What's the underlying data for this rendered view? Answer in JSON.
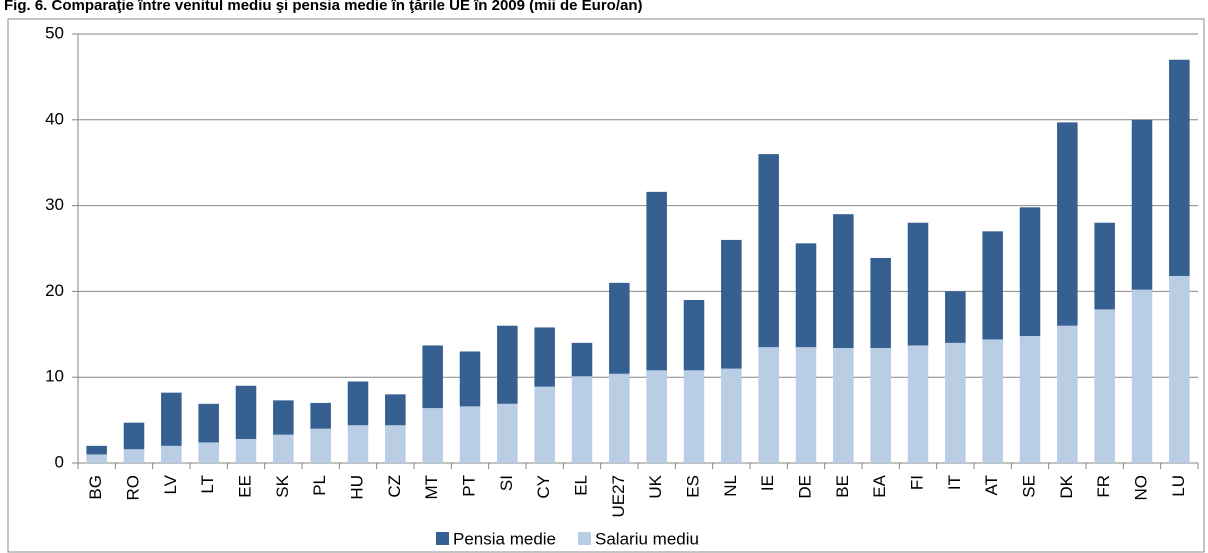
{
  "chart_data": {
    "type": "stacked_bar",
    "title": "Fig. 6. Comparaţie între venitul mediu şi pensia medie în ţările UE în 2009 (mii de Euro/an)",
    "categories": [
      "BG",
      "RO",
      "LV",
      "LT",
      "EE",
      "SK",
      "PL",
      "HU",
      "CZ",
      "MT",
      "PT",
      "SI",
      "CY",
      "EL",
      "UE27",
      "UK",
      "ES",
      "NL",
      "IE",
      "DE",
      "BE",
      "EA",
      "FI",
      "IT",
      "AT",
      "SE",
      "DK",
      "FR",
      "NO",
      "LU"
    ],
    "series": [
      {
        "name": "Pensia medie",
        "color": "#376092",
        "values": [
          1,
          3.1,
          6.2,
          4.5,
          6.2,
          4,
          3,
          5.1,
          3.6,
          7.3,
          6.4,
          9.1,
          6.9,
          3.9,
          10.6,
          20.8,
          8.2,
          15,
          22.5,
          12.1,
          15.6,
          10.5,
          14.3,
          6,
          12.6,
          15,
          23.7,
          10.1,
          19.8,
          25.2
        ]
      },
      {
        "name": "Salariu mediu",
        "color": "#b9cde5",
        "values": [
          1,
          1.6,
          2,
          2.4,
          2.8,
          3.3,
          4,
          4.4,
          4.4,
          6.4,
          6.6,
          6.9,
          8.9,
          10.1,
          10.4,
          10.8,
          10.8,
          11,
          13.5,
          13.5,
          13.4,
          13.4,
          13.7,
          14,
          14.4,
          14.8,
          16,
          17.9,
          20.2,
          21.8
        ]
      }
    ],
    "ylim": [
      0,
      50
    ],
    "yticks": [
      0,
      10,
      20,
      30,
      40,
      50
    ],
    "grid": true,
    "legend": "bottom"
  }
}
